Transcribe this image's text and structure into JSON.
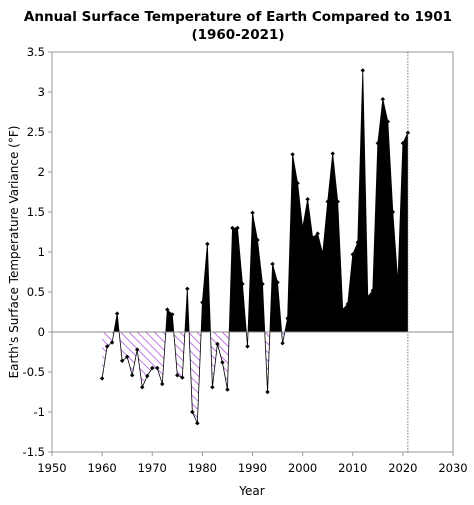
{
  "chart_data": {
    "type": "area",
    "title_line1": "Annual Surface Temperature of Earth Compared to 1901",
    "title_line2": "(1960-2021)",
    "xlabel": "Year",
    "ylabel": "Earth's Surface Temperature Variance (°F)",
    "xlim": [
      1950,
      2030
    ],
    "ylim": [
      -1.5,
      3.5
    ],
    "x_ticks": [
      1950,
      1960,
      1970,
      1980,
      1990,
      2000,
      2010,
      2020,
      2030
    ],
    "y_ticks": [
      -1.5,
      -1,
      -0.5,
      0,
      0.5,
      1,
      1.5,
      2,
      2.5,
      3,
      3.5
    ],
    "x_tick_labels": [
      "1950",
      "1960",
      "1970",
      "1980",
      "1990",
      "2000",
      "2010",
      "2020",
      "2030"
    ],
    "y_tick_labels": [
      "-1.5",
      "-1",
      "-0.5",
      "0",
      "0.5",
      "1",
      "1.5",
      "2",
      "2.5",
      "3",
      "3.5"
    ],
    "reference_line_x": 2021,
    "grid": false,
    "positive_fill": "#000000",
    "negative_pattern_color": "#9b30d9",
    "series": [
      {
        "x": [
          1960,
          1961,
          1962,
          1963,
          1964,
          1965,
          1966,
          1967,
          1968,
          1969,
          1970,
          1971,
          1972,
          1973,
          1974,
          1975,
          1976,
          1977,
          1978,
          1979,
          1980,
          1981,
          1982,
          1983,
          1984,
          1985,
          1986,
          1987,
          1988,
          1989,
          1990,
          1991,
          1992,
          1993,
          1994,
          1995,
          1996,
          1997,
          1998,
          1999,
          2000,
          2001,
          2002,
          2003,
          2004,
          2005,
          2006,
          2007,
          2008,
          2009,
          2010,
          2011,
          2012,
          2013,
          2014,
          2015,
          2016,
          2017,
          2018,
          2019,
          2020,
          2021
        ],
        "y": [
          -0.58,
          -0.18,
          -0.13,
          0.23,
          -0.36,
          -0.31,
          -0.54,
          -0.22,
          -0.69,
          -0.55,
          -0.45,
          -0.45,
          -0.65,
          0.28,
          0.22,
          -0.54,
          -0.57,
          0.54,
          -1.0,
          -1.14,
          0.37,
          1.1,
          -0.69,
          -0.15,
          -0.38,
          -0.72,
          1.3,
          1.3,
          0.6,
          -0.18,
          1.49,
          1.15,
          0.6,
          -0.75,
          0.85,
          0.62,
          -0.14,
          0.17,
          2.22,
          1.86,
          1.3,
          1.66,
          1.18,
          1.23,
          0.98,
          1.63,
          2.23,
          1.63,
          0.28,
          0.35,
          0.97,
          1.12,
          3.27,
          0.44,
          0.52,
          2.36,
          2.91,
          2.63,
          1.5,
          0.62,
          2.36,
          2.49
        ]
      }
    ]
  }
}
